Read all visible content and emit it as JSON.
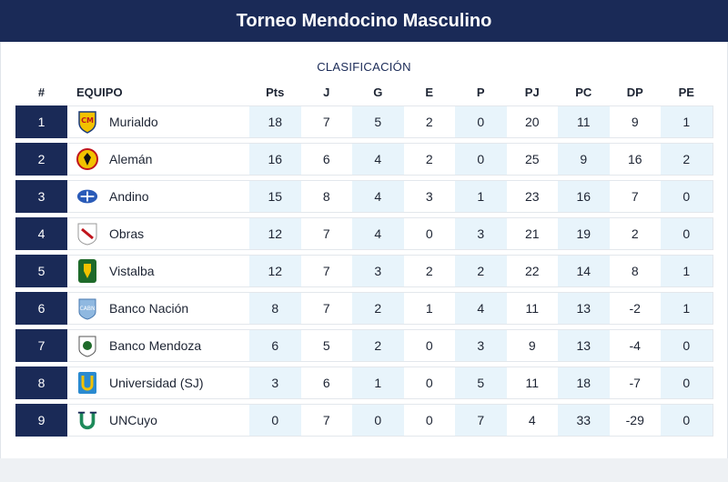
{
  "header": {
    "title": "Torneo Mendocino Masculino"
  },
  "section_title": "CLASIFICACIÓN",
  "columns": [
    "#",
    "EQUIPO",
    "Pts",
    "J",
    "G",
    "E",
    "P",
    "PJ",
    "PC",
    "DP",
    "PE"
  ],
  "rows": [
    {
      "pos": "1",
      "team": "Murialdo",
      "logo": "murialdo-logo",
      "stats": [
        "18",
        "7",
        "5",
        "2",
        "0",
        "20",
        "11",
        "9",
        "1"
      ]
    },
    {
      "pos": "2",
      "team": "Alemán",
      "logo": "aleman-logo",
      "stats": [
        "16",
        "6",
        "4",
        "2",
        "0",
        "25",
        "9",
        "16",
        "2"
      ]
    },
    {
      "pos": "3",
      "team": "Andino",
      "logo": "andino-logo",
      "stats": [
        "15",
        "8",
        "4",
        "3",
        "1",
        "23",
        "16",
        "7",
        "0"
      ]
    },
    {
      "pos": "4",
      "team": "Obras",
      "logo": "obras-logo",
      "stats": [
        "12",
        "7",
        "4",
        "0",
        "3",
        "21",
        "19",
        "2",
        "0"
      ]
    },
    {
      "pos": "5",
      "team": "Vistalba",
      "logo": "vistalba-logo",
      "stats": [
        "12",
        "7",
        "3",
        "2",
        "2",
        "22",
        "14",
        "8",
        "1"
      ]
    },
    {
      "pos": "6",
      "team": "Banco Nación",
      "logo": "banco-nacion-logo",
      "stats": [
        "8",
        "7",
        "2",
        "1",
        "4",
        "11",
        "13",
        "-2",
        "1"
      ]
    },
    {
      "pos": "7",
      "team": "Banco Mendoza",
      "logo": "banco-mendoza-logo",
      "stats": [
        "6",
        "5",
        "2",
        "0",
        "3",
        "9",
        "13",
        "-4",
        "0"
      ]
    },
    {
      "pos": "8",
      "team": "Universidad (SJ)",
      "logo": "universidad-sj-logo",
      "stats": [
        "3",
        "6",
        "1",
        "0",
        "5",
        "11",
        "18",
        "-7",
        "0"
      ]
    },
    {
      "pos": "9",
      "team": "UNCuyo",
      "logo": "uncuyo-logo",
      "stats": [
        "0",
        "7",
        "0",
        "0",
        "7",
        "4",
        "33",
        "-29",
        "0"
      ]
    }
  ],
  "colors": {
    "header_bg": "#1a2a57",
    "shade": "#e8f4fb"
  }
}
